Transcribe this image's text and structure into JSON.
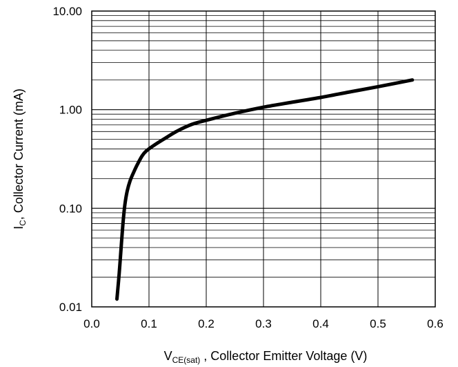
{
  "chart_data": {
    "type": "line",
    "title": "",
    "xlabel": {
      "main": "V",
      "sub": "CE(sat)",
      "rest": " , Collector Emitter Voltage (V)"
    },
    "ylabel": {
      "main": "I",
      "sub": "C",
      "rest": ", Collector Current (mA)"
    },
    "xlim": [
      0.0,
      0.6
    ],
    "ylim": [
      0.01,
      10.0
    ],
    "yscale": "log",
    "grid": true,
    "legend": "none",
    "xticks": [
      0.0,
      0.1,
      0.2,
      0.3,
      0.4,
      0.5,
      0.6
    ],
    "xtick_labels": [
      "0.0",
      "0.1",
      "0.2",
      "0.3",
      "0.4",
      "0.5",
      "0.6"
    ],
    "yticks": [
      0.01,
      0.1,
      1.0,
      10.0
    ],
    "ytick_labels": [
      "0.01",
      "0.10",
      "1.00",
      "10.00"
    ],
    "series": [
      {
        "color": "#000000",
        "x": [
          0.044,
          0.048,
          0.052,
          0.055,
          0.058,
          0.062,
          0.067,
          0.073,
          0.08,
          0.088,
          0.095,
          0.11,
          0.13,
          0.15,
          0.175,
          0.2,
          0.25,
          0.3,
          0.35,
          0.4,
          0.45,
          0.5,
          0.56
        ],
        "y": [
          0.012,
          0.022,
          0.045,
          0.075,
          0.11,
          0.15,
          0.19,
          0.23,
          0.28,
          0.34,
          0.38,
          0.44,
          0.52,
          0.61,
          0.71,
          0.78,
          0.92,
          1.06,
          1.19,
          1.33,
          1.51,
          1.71,
          2.0
        ]
      }
    ]
  }
}
